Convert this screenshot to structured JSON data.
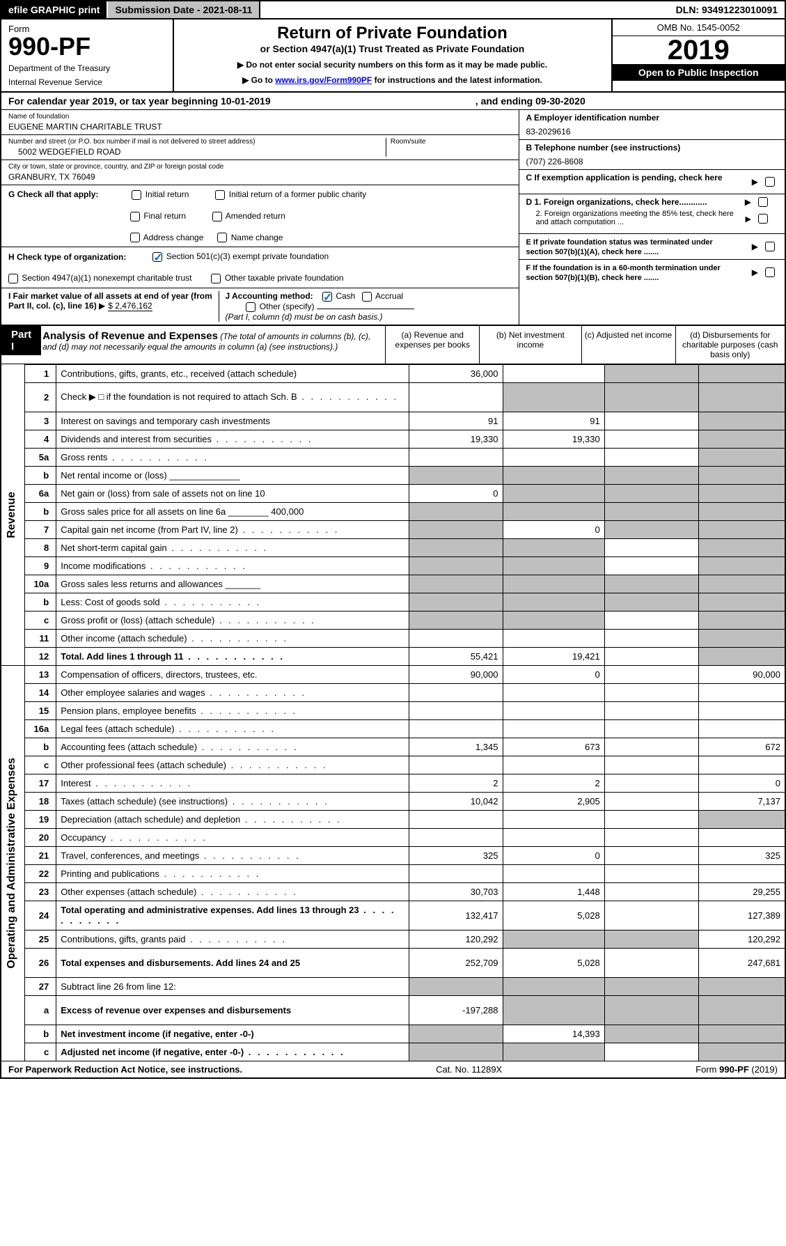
{
  "topbar": {
    "efile": "efile GRAPHIC print",
    "submission": "Submission Date - 2021-08-11",
    "dln": "DLN: 93491223010091"
  },
  "header": {
    "form_label": "Form",
    "form_no": "990-PF",
    "dept": "Department of the Treasury",
    "irs": "Internal Revenue Service",
    "title": "Return of Private Foundation",
    "subtitle": "or Section 4947(a)(1) Trust Treated as Private Foundation",
    "instr1": "Do not enter social security numbers on this form as it may be made public.",
    "instr2_pre": "Go to ",
    "instr2_link": "www.irs.gov/Form990PF",
    "instr2_post": " for instructions and the latest information.",
    "omb": "OMB No. 1545-0052",
    "year": "2019",
    "inspect": "Open to Public Inspection"
  },
  "calyr": {
    "pre": "For calendar year 2019, or tax year beginning 10-01-2019",
    "end": ", and ending 09-30-2020"
  },
  "info": {
    "name_lbl": "Name of foundation",
    "name": "EUGENE MARTIN CHARITABLE TRUST",
    "addr_lbl": "Number and street (or P.O. box number if mail is not delivered to street address)",
    "room_lbl": "Room/suite",
    "addr": "5002 WEDGEFIELD ROAD",
    "city_lbl": "City or town, state or province, country, and ZIP or foreign postal code",
    "city": "GRANBURY, TX  76049",
    "ein_lbl": "A Employer identification number",
    "ein": "83-2029616",
    "tel_lbl": "B Telephone number (see instructions)",
    "tel": "(707) 226-8608",
    "c": "C If exemption application is pending, check here",
    "g": "G Check all that apply:",
    "g_opts": [
      "Initial return",
      "Initial return of a former public charity",
      "Final return",
      "Amended return",
      "Address change",
      "Name change"
    ],
    "h": "H Check type of organization:",
    "h1": "Section 501(c)(3) exempt private foundation",
    "h2": "Section 4947(a)(1) nonexempt charitable trust",
    "h3": "Other taxable private foundation",
    "i": "I Fair market value of all assets at end of year (from Part II, col. (c), line 16)",
    "i_val": "$  2,476,162",
    "j": "J Accounting method:",
    "j_cash": "Cash",
    "j_accr": "Accrual",
    "j_other": "Other (specify)",
    "j_note": "(Part I, column (d) must be on cash basis.)",
    "d1": "D 1. Foreign organizations, check here............",
    "d2": "2. Foreign organizations meeting the 85% test, check here and attach computation ...",
    "e": "E  If private foundation status was terminated under section 507(b)(1)(A), check here .......",
    "f": "F  If the foundation is in a 60-month termination under section 507(b)(1)(B), check here .......",
    "arrow": "▶"
  },
  "part1": {
    "label": "Part I",
    "title": "Analysis of Revenue and Expenses",
    "title_note": "(The total of amounts in columns (b), (c), and (d) may not necessarily equal the amounts in column (a) (see instructions).)",
    "colA": "(a)    Revenue and expenses per books",
    "colB": "(b)   Net investment income",
    "colC": "(c)   Adjusted net income",
    "colD": "(d)   Disbursements for charitable purposes (cash basis only)",
    "rotRevenue": "Revenue",
    "rotExpenses": "Operating and Administrative Expenses"
  },
  "rows": [
    {
      "n": "1",
      "d": "Contributions, gifts, grants, etc., received (attach schedule)",
      "a": "36,000",
      "b": "",
      "c": "s",
      "dd": "s"
    },
    {
      "n": "2",
      "d": "Check ▶ □ if the foundation is not required to attach Sch. B",
      "dots": 1,
      "a": "",
      "b": "s",
      "c": "s",
      "dd": "s",
      "tall": 1
    },
    {
      "n": "3",
      "d": "Interest on savings and temporary cash investments",
      "a": "91",
      "b": "91",
      "c": "",
      "dd": "s"
    },
    {
      "n": "4",
      "d": "Dividends and interest from securities",
      "dots": 1,
      "a": "19,330",
      "b": "19,330",
      "c": "",
      "dd": "s"
    },
    {
      "n": "5a",
      "d": "Gross rents",
      "dots": 1,
      "a": "",
      "b": "",
      "c": "",
      "dd": "s"
    },
    {
      "n": "b",
      "d": "Net rental income or (loss)  ______________",
      "a": "s",
      "b": "s",
      "c": "s",
      "dd": "s"
    },
    {
      "n": "6a",
      "d": "Net gain or (loss) from sale of assets not on line 10",
      "a": "0",
      "b": "s",
      "c": "s",
      "dd": "s"
    },
    {
      "n": "b",
      "d": "Gross sales price for all assets on line 6a ________ 400,000",
      "a": "s",
      "b": "s",
      "c": "s",
      "dd": "s"
    },
    {
      "n": "7",
      "d": "Capital gain net income (from Part IV, line 2)",
      "dots": 1,
      "a": "s",
      "b": "0",
      "c": "s",
      "dd": "s"
    },
    {
      "n": "8",
      "d": "Net short-term capital gain",
      "dots": 1,
      "a": "s",
      "b": "s",
      "c": "",
      "dd": "s"
    },
    {
      "n": "9",
      "d": "Income modifications",
      "dots": 1,
      "a": "s",
      "b": "s",
      "c": "",
      "dd": "s"
    },
    {
      "n": "10a",
      "d": "Gross sales less returns and allowances  _______",
      "a": "s",
      "b": "s",
      "c": "s",
      "dd": "s"
    },
    {
      "n": "b",
      "d": "Less: Cost of goods sold",
      "dots": 1,
      "box": 1,
      "a": "s",
      "b": "s",
      "c": "s",
      "dd": "s"
    },
    {
      "n": "c",
      "d": "Gross profit or (loss) (attach schedule)",
      "dots": 1,
      "a": "s",
      "b": "s",
      "c": "",
      "dd": "s"
    },
    {
      "n": "11",
      "d": "Other income (attach schedule)",
      "dots": 1,
      "a": "",
      "b": "",
      "c": "",
      "dd": "s"
    },
    {
      "n": "12",
      "d": "Total. Add lines 1 through 11",
      "dots": 1,
      "bold": 1,
      "a": "55,421",
      "b": "19,421",
      "c": "",
      "dd": "s"
    },
    {
      "n": "13",
      "d": "Compensation of officers, directors, trustees, etc.",
      "a": "90,000",
      "b": "0",
      "c": "",
      "dd": "90,000",
      "grp": "exp"
    },
    {
      "n": "14",
      "d": "Other employee salaries and wages",
      "dots": 1,
      "a": "",
      "b": "",
      "c": "",
      "dd": ""
    },
    {
      "n": "15",
      "d": "Pension plans, employee benefits",
      "dots": 1,
      "a": "",
      "b": "",
      "c": "",
      "dd": ""
    },
    {
      "n": "16a",
      "d": "Legal fees (attach schedule)",
      "dots": 1,
      "a": "",
      "b": "",
      "c": "",
      "dd": ""
    },
    {
      "n": "b",
      "d": "Accounting fees (attach schedule)",
      "dots": 1,
      "a": "1,345",
      "b": "673",
      "c": "",
      "dd": "672"
    },
    {
      "n": "c",
      "d": "Other professional fees (attach schedule)",
      "dots": 1,
      "a": "",
      "b": "",
      "c": "",
      "dd": ""
    },
    {
      "n": "17",
      "d": "Interest",
      "dots": 1,
      "a": "2",
      "b": "2",
      "c": "",
      "dd": "0"
    },
    {
      "n": "18",
      "d": "Taxes (attach schedule) (see instructions)",
      "dots": 1,
      "a": "10,042",
      "b": "2,905",
      "c": "",
      "dd": "7,137"
    },
    {
      "n": "19",
      "d": "Depreciation (attach schedule) and depletion",
      "dots": 1,
      "a": "",
      "b": "",
      "c": "",
      "dd": "s"
    },
    {
      "n": "20",
      "d": "Occupancy",
      "dots": 1,
      "a": "",
      "b": "",
      "c": "",
      "dd": ""
    },
    {
      "n": "21",
      "d": "Travel, conferences, and meetings",
      "dots": 1,
      "a": "325",
      "b": "0",
      "c": "",
      "dd": "325"
    },
    {
      "n": "22",
      "d": "Printing and publications",
      "dots": 1,
      "a": "",
      "b": "",
      "c": "",
      "dd": ""
    },
    {
      "n": "23",
      "d": "Other expenses (attach schedule)",
      "dots": 1,
      "a": "30,703",
      "b": "1,448",
      "c": "",
      "dd": "29,255"
    },
    {
      "n": "24",
      "d": "Total operating and administrative expenses. Add lines 13 through 23",
      "dots": 1,
      "bold": 1,
      "a": "132,417",
      "b": "5,028",
      "c": "",
      "dd": "127,389",
      "tall": 1
    },
    {
      "n": "25",
      "d": "Contributions, gifts, grants paid",
      "dots": 1,
      "a": "120,292",
      "b": "s",
      "c": "s",
      "dd": "120,292"
    },
    {
      "n": "26",
      "d": "Total expenses and disbursements. Add lines 24 and 25",
      "bold": 1,
      "a": "252,709",
      "b": "5,028",
      "c": "",
      "dd": "247,681",
      "tall": 1
    },
    {
      "n": "27",
      "d": "Subtract line 26 from line 12:",
      "a": "s",
      "b": "s",
      "c": "s",
      "dd": "s"
    },
    {
      "n": "a",
      "d": "Excess of revenue over expenses and disbursements",
      "bold": 1,
      "a": "-197,288",
      "b": "s",
      "c": "s",
      "dd": "s",
      "tall": 1
    },
    {
      "n": "b",
      "d": "Net investment income (if negative, enter -0-)",
      "bold": 1,
      "a": "s",
      "b": "14,393",
      "c": "s",
      "dd": "s"
    },
    {
      "n": "c",
      "d": "Adjusted net income (if negative, enter -0-)",
      "bold": 1,
      "dots": 1,
      "a": "s",
      "b": "s",
      "c": "",
      "dd": "s"
    }
  ],
  "footer": {
    "pra": "For Paperwork Reduction Act Notice, see instructions.",
    "cat": "Cat. No. 11289X",
    "form": "Form 990-PF (2019)"
  },
  "colors": {
    "link": "#0000ee",
    "check": "#0070e0",
    "shade": "#bfbfbf"
  }
}
